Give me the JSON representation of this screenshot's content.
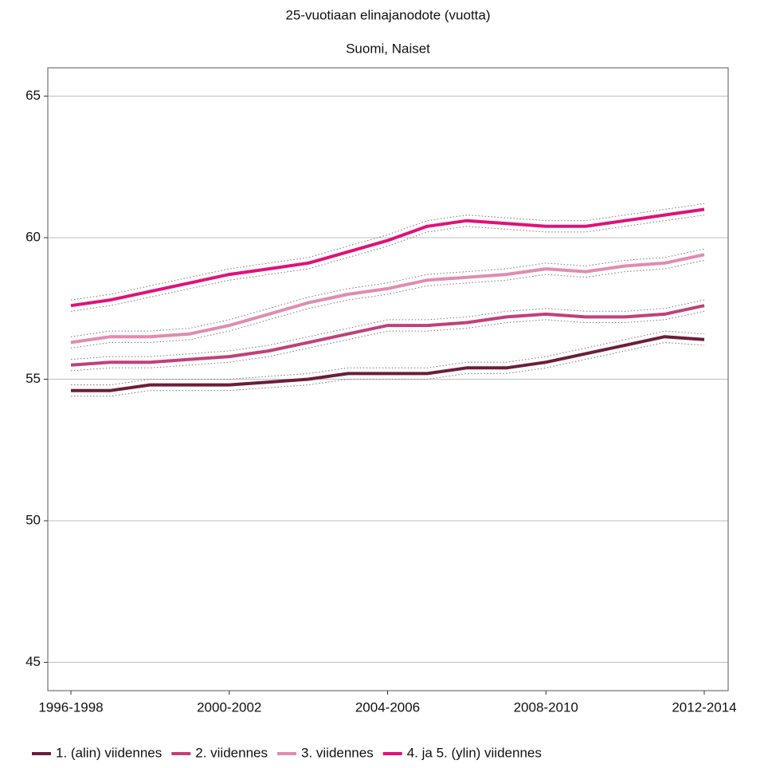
{
  "chart_data": {
    "type": "line",
    "title": "25-vuotiaan elinajanodote (vuotta)",
    "subtitle": "Suomi, Naiset",
    "categories": [
      "1996-1998",
      null,
      null,
      null,
      "2000-2002",
      null,
      null,
      null,
      "2004-2006",
      null,
      null,
      null,
      "2008-2010",
      null,
      null,
      null,
      "2012-2014"
    ],
    "ylim": [
      44,
      66
    ],
    "yticks": [
      45,
      50,
      55,
      60,
      65
    ],
    "grid": true,
    "legend": "bottom",
    "series": [
      {
        "name": "1. (alin) viidennes",
        "color": "#6b1e3b",
        "values": [
          54.6,
          54.6,
          54.8,
          54.8,
          54.8,
          54.9,
          55.0,
          55.2,
          55.2,
          55.2,
          55.4,
          55.4,
          55.6,
          55.9,
          56.2,
          56.5,
          56.4
        ],
        "lower": [
          54.4,
          54.4,
          54.6,
          54.6,
          54.6,
          54.7,
          54.8,
          55.0,
          55.0,
          55.0,
          55.2,
          55.2,
          55.4,
          55.7,
          56.0,
          56.3,
          56.2
        ],
        "upper": [
          54.8,
          54.8,
          55.0,
          55.0,
          55.0,
          55.1,
          55.2,
          55.4,
          55.4,
          55.4,
          55.6,
          55.6,
          55.8,
          56.1,
          56.4,
          56.7,
          56.6
        ]
      },
      {
        "name": "2. viidennes",
        "color": "#c0407a",
        "values": [
          55.5,
          55.6,
          55.6,
          55.7,
          55.8,
          56.0,
          56.3,
          56.6,
          56.9,
          56.9,
          57.0,
          57.2,
          57.3,
          57.2,
          57.2,
          57.3,
          57.6
        ],
        "lower": [
          55.3,
          55.4,
          55.4,
          55.5,
          55.6,
          55.8,
          56.1,
          56.4,
          56.7,
          56.7,
          56.8,
          57.0,
          57.1,
          57.0,
          57.0,
          57.1,
          57.4
        ],
        "upper": [
          55.7,
          55.8,
          55.8,
          55.9,
          56.0,
          56.2,
          56.5,
          56.8,
          57.1,
          57.1,
          57.2,
          57.4,
          57.5,
          57.4,
          57.4,
          57.5,
          57.8
        ]
      },
      {
        "name": "3. viidennes",
        "color": "#e08cb0",
        "values": [
          56.3,
          56.5,
          56.5,
          56.6,
          56.9,
          57.3,
          57.7,
          58.0,
          58.2,
          58.5,
          58.6,
          58.7,
          58.9,
          58.8,
          59.0,
          59.1,
          59.4
        ],
        "lower": [
          56.1,
          56.3,
          56.3,
          56.4,
          56.7,
          57.1,
          57.5,
          57.8,
          58.0,
          58.3,
          58.4,
          58.5,
          58.7,
          58.6,
          58.8,
          58.9,
          59.2
        ],
        "upper": [
          56.5,
          56.7,
          56.7,
          56.8,
          57.1,
          57.5,
          57.9,
          58.2,
          58.4,
          58.7,
          58.8,
          58.9,
          59.1,
          59.0,
          59.2,
          59.3,
          59.6
        ]
      },
      {
        "name": "4. ja 5. (ylin) viidennes",
        "color": "#e0117a",
        "values": [
          57.6,
          57.8,
          58.1,
          58.4,
          58.7,
          58.9,
          59.1,
          59.5,
          59.9,
          60.4,
          60.6,
          60.5,
          60.4,
          60.4,
          60.6,
          60.8,
          61.0
        ],
        "lower": [
          57.4,
          57.6,
          57.9,
          58.2,
          58.5,
          58.7,
          58.9,
          59.3,
          59.7,
          60.2,
          60.4,
          60.3,
          60.2,
          60.2,
          60.4,
          60.6,
          60.8
        ],
        "upper": [
          57.8,
          58.0,
          58.3,
          58.6,
          58.9,
          59.1,
          59.3,
          59.7,
          60.1,
          60.6,
          60.8,
          60.7,
          60.6,
          60.6,
          60.8,
          61.0,
          61.2
        ]
      }
    ]
  }
}
